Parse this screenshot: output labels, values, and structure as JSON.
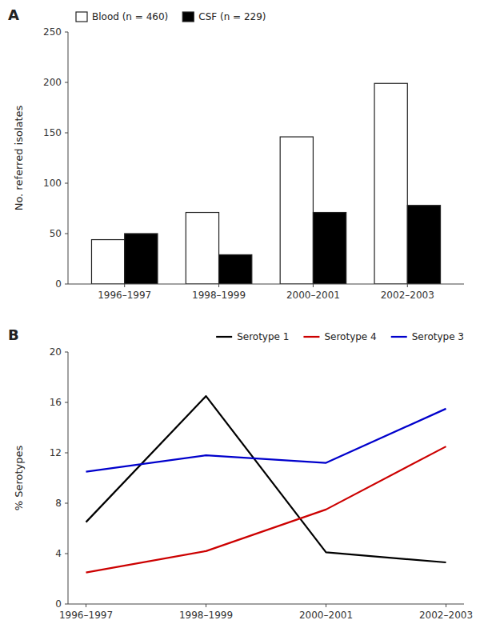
{
  "chart_data": [
    {
      "type": "bar",
      "title": "A",
      "categories": [
        "1996–1997",
        "1998–1999",
        "2000–2001",
        "2002–2003"
      ],
      "series": [
        {
          "name": "Blood (n = 460)",
          "color": "#ffffff",
          "values": [
            44,
            71,
            146,
            199
          ]
        },
        {
          "name": "CSF (n = 229)",
          "color": "#000000",
          "values": [
            50,
            29,
            71,
            78
          ]
        }
      ],
      "y_label": "No. referred isolates",
      "ylim": [
        0,
        250
      ],
      "yticks": [
        0,
        50,
        100,
        150,
        200,
        250
      ],
      "legend": "upper left",
      "grid": false
    },
    {
      "type": "line",
      "title": "B",
      "categories": [
        "1996–1997",
        "1998–1999",
        "2000–2001",
        "2002–2003"
      ],
      "series": [
        {
          "name": "Serotype 1",
          "color": "#000000",
          "values": [
            6.5,
            16.5,
            4.1,
            3.3
          ]
        },
        {
          "name": "Serotype 4",
          "color": "#cc0000",
          "values": [
            2.5,
            4.2,
            7.5,
            12.5
          ]
        },
        {
          "name": "Serotype 3",
          "color": "#0000cc",
          "values": [
            10.5,
            11.8,
            11.2,
            15.5
          ]
        }
      ],
      "y_label": "% Serotypes",
      "ylim": [
        0,
        20
      ],
      "yticks": [
        0,
        4,
        8,
        12,
        16,
        20
      ],
      "legend": "upper right",
      "grid": false
    }
  ]
}
